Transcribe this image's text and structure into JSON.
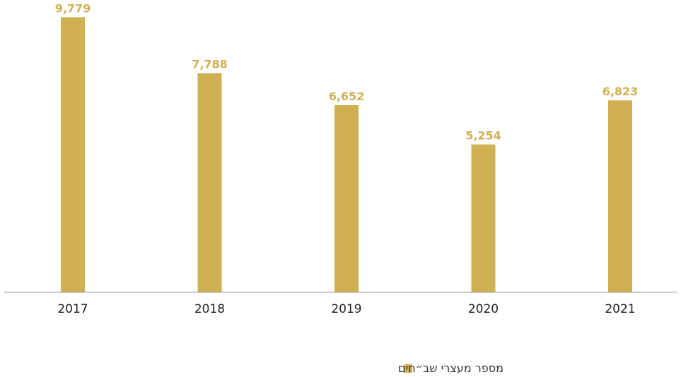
{
  "chart_data": {
    "type": "bar",
    "categories": [
      "2017",
      "2018",
      "2019",
      "2020",
      "2021"
    ],
    "series": [
      {
        "name": "מספר מעצרי שב״חים",
        "values": [
          9779,
          7788,
          6652,
          5254,
          6823
        ],
        "value_labels": [
          "9,779",
          "7,788",
          "6,652",
          "5,254",
          "6,823"
        ]
      }
    ],
    "title": "",
    "xlabel": "",
    "ylabel": "",
    "ylim": [
      0,
      10000
    ],
    "grid": false,
    "legend": "bottom-center",
    "colors": {
      "bar": "#CFB153",
      "label": "#CFB153",
      "axis": "#999999"
    }
  }
}
